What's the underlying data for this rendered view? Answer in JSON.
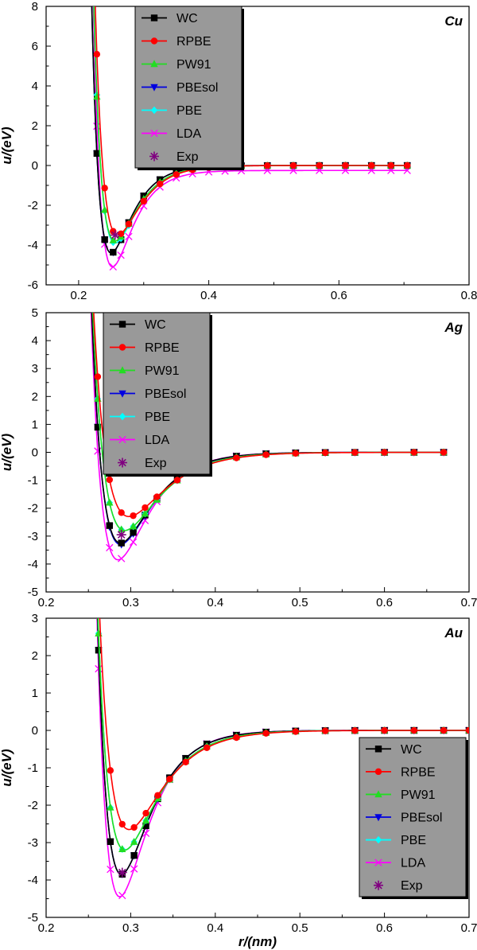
{
  "colors": {
    "WC": "#000000",
    "RPBE": "#ff0000",
    "PW91": "#22dd22",
    "PBEsol": "#0000e0",
    "PBE": "#00ffff",
    "LDA": "#ff00ff",
    "Exp": "#800080",
    "legend_bg": "#999999"
  },
  "chart_data": [
    {
      "type": "line",
      "panel_label": "Cu",
      "ylabel": "u/(eV)",
      "xlabel": "",
      "xlim": [
        0.15,
        0.8
      ],
      "ylim": [
        -6,
        8
      ],
      "xticks": [
        0.2,
        0.4,
        0.6,
        0.8
      ],
      "xtick_labels": [
        "0.2",
        "0.4",
        "0.6",
        "0.8"
      ],
      "yticks": [
        -6,
        -4,
        -2,
        0,
        2,
        4,
        6,
        8
      ],
      "ytick_labels": [
        "-6",
        "-4",
        "-2",
        "0",
        "2",
        "4",
        "6",
        "8"
      ],
      "legend_position": "top-center",
      "legend": [
        "WC",
        "RPBE",
        "PW91",
        "PBEsol",
        "PBE",
        "LDA",
        "Exp"
      ],
      "morse": {
        "WC": {
          "D": 4.4,
          "r0": 0.25,
          "a": 33,
          "shift": 0
        },
        "RPBE": {
          "D": 3.5,
          "r0": 0.26,
          "a": 30,
          "shift": 0
        },
        "PW91": {
          "D": 3.8,
          "r0": 0.256,
          "a": 31,
          "shift": 0
        },
        "PBEsol": {
          "D": 4.4,
          "r0": 0.25,
          "a": 33,
          "shift": 0
        },
        "PBE": {
          "D": 3.9,
          "r0": 0.256,
          "a": 31,
          "shift": 0
        },
        "LDA": {
          "D": 4.85,
          "r0": 0.252,
          "a": 33,
          "shift": -0.25
        }
      },
      "marker_x": [
        0.191,
        0.203,
        0.216,
        0.228,
        0.24,
        0.253,
        0.265,
        0.277,
        0.3,
        0.325,
        0.35,
        0.375,
        0.4,
        0.425,
        0.45,
        0.49,
        0.53,
        0.57,
        0.61,
        0.65,
        0.68,
        0.705
      ],
      "curve_range": [
        0.191,
        0.705
      ],
      "exp_point": {
        "x": 0.256,
        "y": -3.5
      }
    },
    {
      "type": "line",
      "panel_label": "Ag",
      "ylabel": "u/(eV)",
      "xlabel": "",
      "xlim": [
        0.2,
        0.7
      ],
      "ylim": [
        -5,
        5
      ],
      "xticks": [
        0.2,
        0.3,
        0.4,
        0.5,
        0.6,
        0.7
      ],
      "xtick_labels": [
        "0.2",
        "0.3",
        "0.4",
        "0.5",
        "0.6",
        "0.7"
      ],
      "yticks": [
        -5,
        -4,
        -3,
        -2,
        -1,
        0,
        1,
        2,
        3,
        4,
        5
      ],
      "ytick_labels": [
        "-5",
        "-4",
        "-3",
        "-2",
        "-1",
        "0",
        "1",
        "2",
        "3",
        "4",
        "5"
      ],
      "legend_position": "top-left",
      "legend": [
        "WC",
        "RPBE",
        "PW91",
        "PBEsol",
        "PBE",
        "LDA",
        "Exp"
      ],
      "morse": {
        "WC": {
          "D": 3.25,
          "r0": 0.288,
          "a": 28,
          "shift": 0
        },
        "RPBE": {
          "D": 2.3,
          "r0": 0.298,
          "a": 24.5,
          "shift": 0
        },
        "PW91": {
          "D": 2.8,
          "r0": 0.293,
          "a": 26,
          "shift": 0
        },
        "PBEsol": {
          "D": 3.3,
          "r0": 0.288,
          "a": 28,
          "shift": 0
        },
        "PBE": {
          "D": 2.8,
          "r0": 0.293,
          "a": 26,
          "shift": 0
        },
        "LDA": {
          "D": 3.85,
          "r0": 0.285,
          "a": 29,
          "shift": 0
        }
      },
      "marker_x": [
        0.233,
        0.247,
        0.261,
        0.275,
        0.289,
        0.303,
        0.317,
        0.331,
        0.355,
        0.39,
        0.425,
        0.46,
        0.495,
        0.53,
        0.565,
        0.6,
        0.635,
        0.67
      ],
      "curve_range": [
        0.233,
        0.67
      ],
      "exp_point": {
        "x": 0.289,
        "y": -2.95
      }
    },
    {
      "type": "line",
      "panel_label": "Au",
      "ylabel": "u/(eV)",
      "xlabel": "r/(nm)",
      "xlim": [
        0.2,
        0.7
      ],
      "ylim": [
        -5,
        3
      ],
      "xticks": [
        0.2,
        0.3,
        0.4,
        0.5,
        0.6,
        0.7
      ],
      "xtick_labels": [
        "0.2",
        "0.3",
        "0.4",
        "0.5",
        "0.6",
        "0.7"
      ],
      "yticks": [
        -5,
        -4,
        -3,
        -2,
        -1,
        0,
        1,
        2,
        3
      ],
      "ytick_labels": [
        "-5",
        "-4",
        "-3",
        "-2",
        "-1",
        "0",
        "1",
        "2",
        "3"
      ],
      "legend_position": "bottom-right",
      "legend": [
        "WC",
        "RPBE",
        "PW91",
        "PBEsol",
        "PBE",
        "LDA",
        "Exp"
      ],
      "morse": {
        "WC": {
          "D": 3.85,
          "r0": 0.289,
          "a": 30,
          "shift": 0
        },
        "RPBE": {
          "D": 2.65,
          "r0": 0.298,
          "a": 26,
          "shift": 0
        },
        "PW91": {
          "D": 3.2,
          "r0": 0.293,
          "a": 27.5,
          "shift": 0
        },
        "PBEsol": {
          "D": 3.85,
          "r0": 0.289,
          "a": 30,
          "shift": 0
        },
        "PBE": {
          "D": 3.2,
          "r0": 0.293,
          "a": 27.5,
          "shift": 0
        },
        "LDA": {
          "D": 4.45,
          "r0": 0.287,
          "a": 31,
          "shift": 0
        }
      },
      "marker_x": [
        0.248,
        0.262,
        0.276,
        0.29,
        0.304,
        0.318,
        0.332,
        0.346,
        0.365,
        0.39,
        0.425,
        0.46,
        0.495,
        0.53,
        0.565,
        0.6,
        0.635,
        0.67,
        0.7
      ],
      "curve_range": [
        0.248,
        0.7
      ],
      "exp_point": {
        "x": 0.29,
        "y": -3.8
      }
    }
  ]
}
